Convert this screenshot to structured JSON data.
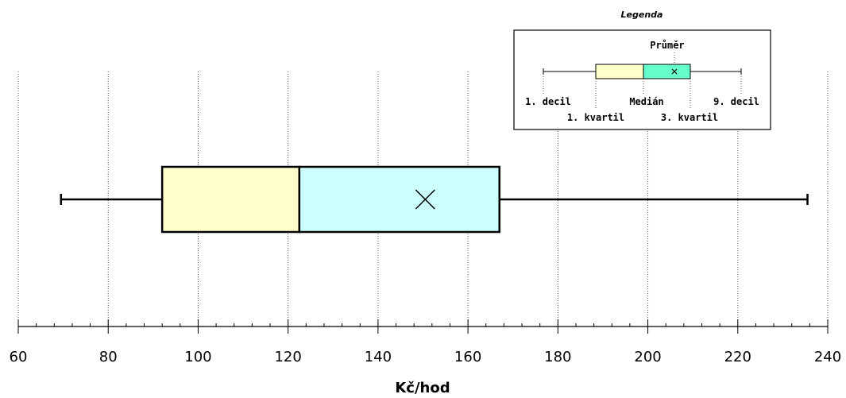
{
  "chart_data": {
    "type": "box",
    "xlabel": "Kč/hod",
    "xlim": [
      60,
      240
    ],
    "xticks": [
      60,
      80,
      100,
      120,
      140,
      160,
      180,
      200,
      220,
      240
    ],
    "minor_step": 4,
    "grid": true,
    "box": {
      "decile_1": 69.5,
      "quartile_1": 92,
      "median": 122.5,
      "mean": 150.5,
      "quartile_3": 167,
      "decile_9": 235.5
    },
    "colors": {
      "lower_box": "#ffffcc",
      "upper_box": "#ccffff",
      "legend_lower_box": "#ffffcc",
      "legend_upper_box": "#66ffcc"
    },
    "legend": {
      "title": "Legenda",
      "placement": "top-right",
      "labels": {
        "mean": "Průměr",
        "decile_1": "1. decil",
        "quartile_1": "1. kvartil",
        "median": "Medián",
        "quartile_3": "3. kvartil",
        "decile_9": "9. decil"
      }
    }
  }
}
